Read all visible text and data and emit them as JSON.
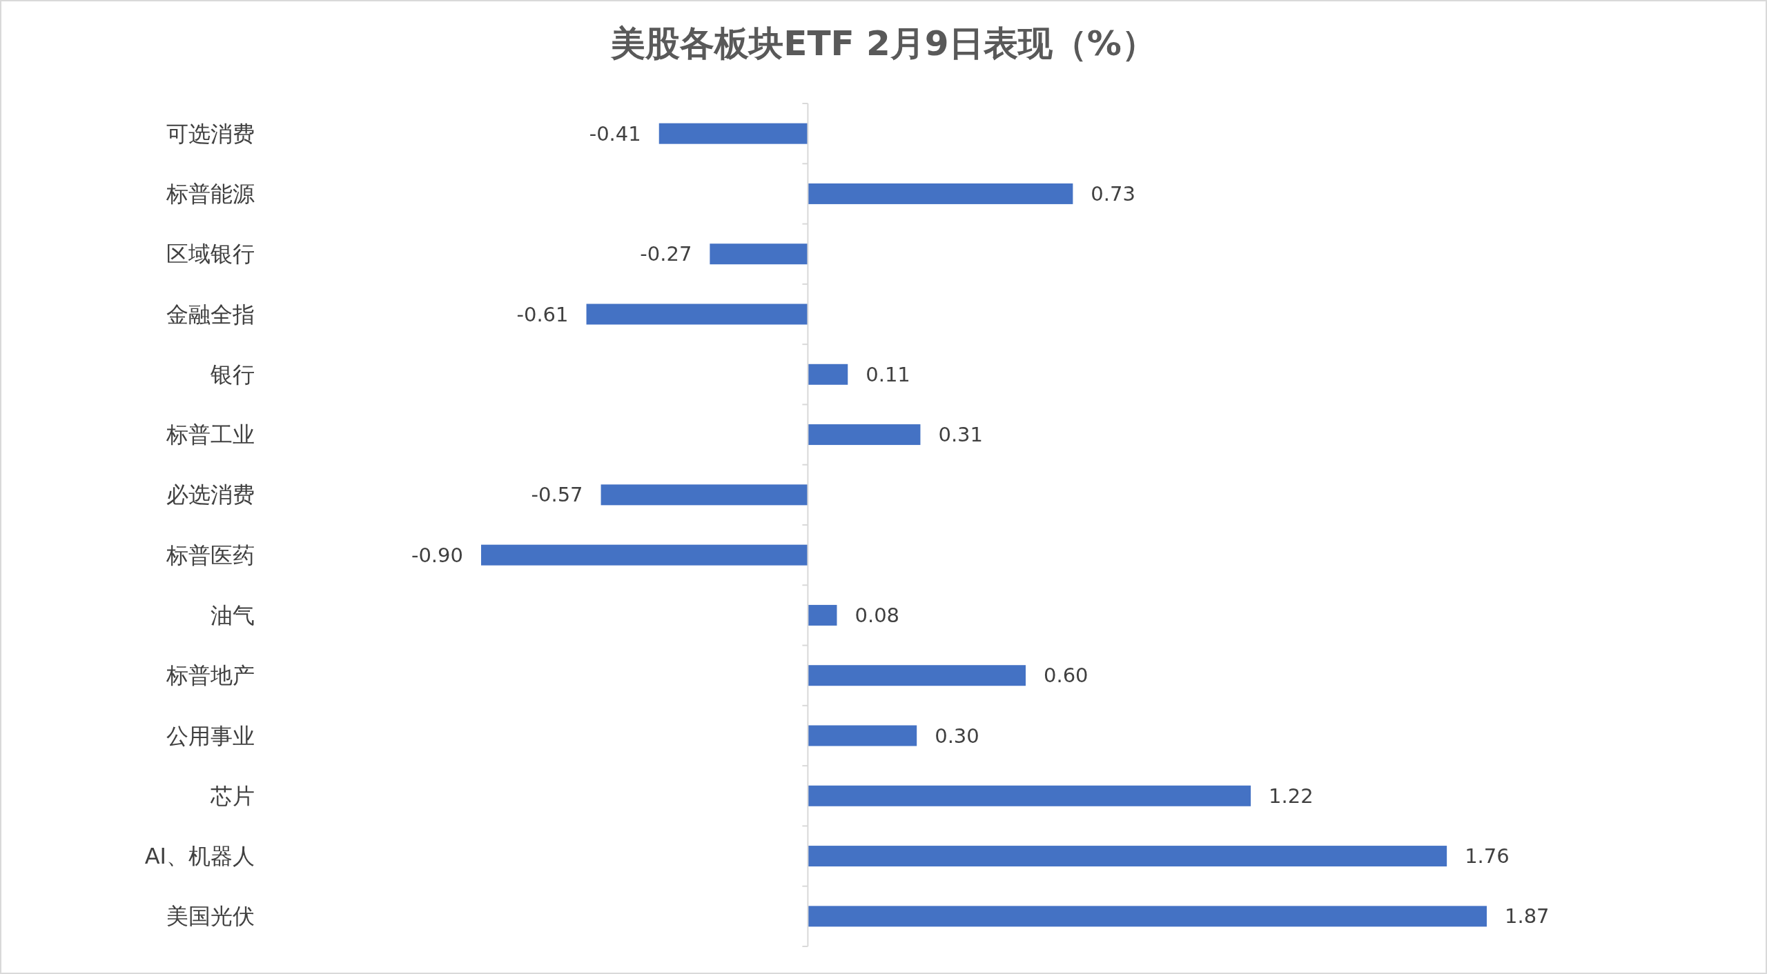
{
  "chart_data": {
    "type": "bar",
    "orientation": "horizontal",
    "title": "美股各板块ETF  2月9日表现（%）",
    "categories": [
      "可选消费",
      "标普能源",
      "区域银行",
      "金融全指",
      "银行",
      "标普工业",
      "必选消费",
      "标普医药",
      "油气",
      "标普地产",
      "公用事业",
      "芯片",
      "AI、机器人",
      "美国光伏"
    ],
    "values": [
      -0.41,
      0.73,
      -0.27,
      -0.61,
      0.11,
      0.31,
      -0.57,
      -0.9,
      0.08,
      0.6,
      0.3,
      1.22,
      1.76,
      1.87
    ],
    "value_labels": [
      "-0.41",
      "0.73",
      "-0.27",
      "-0.61",
      "0.11",
      "0.31",
      "-0.57",
      "-0.90",
      "0.08",
      "0.60",
      "0.30",
      "1.22",
      "1.76",
      "1.87"
    ],
    "color": "#4472c4",
    "tick_labels": "y"
  }
}
